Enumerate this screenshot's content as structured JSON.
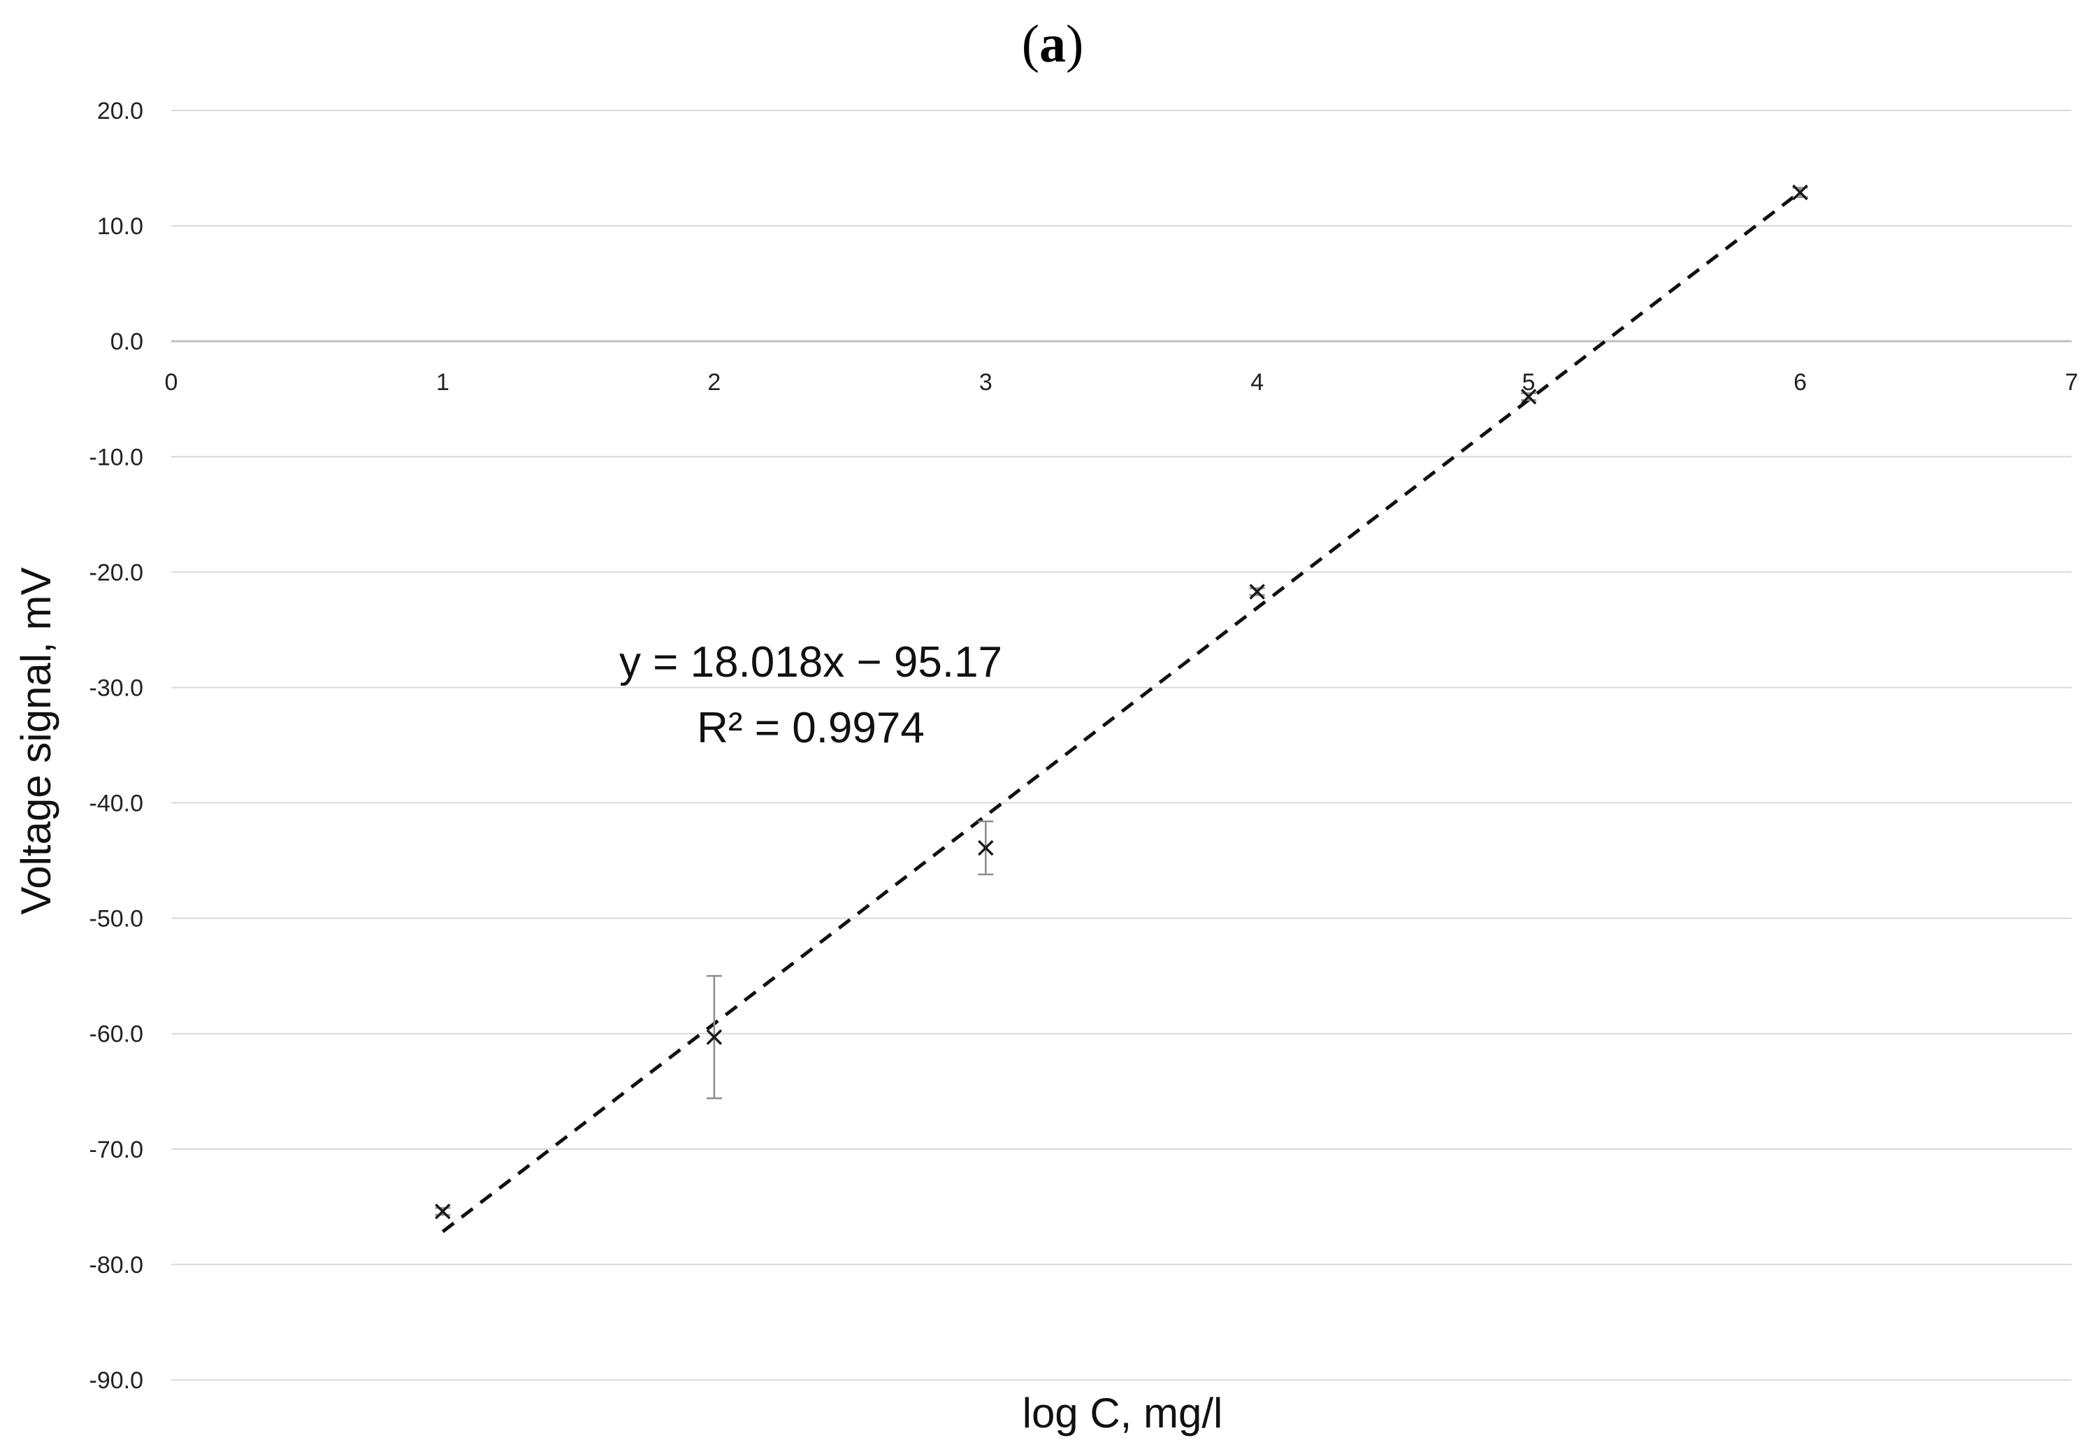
{
  "chart_data": {
    "type": "scatter",
    "panel_label": {
      "open": "(",
      "letter": "a",
      "close": ")"
    },
    "xlabel": "log C, mg/l",
    "ylabel": "Voltage signal, mV",
    "xlim": [
      0,
      7
    ],
    "ylim": [
      -90,
      20
    ],
    "x_ticks": [
      "0",
      "1",
      "2",
      "3",
      "4",
      "5",
      "6",
      "7"
    ],
    "y_ticks": [
      "20.0",
      "10.0",
      "0.0",
      "-10.0",
      "-20.0",
      "-30.0",
      "-40.0",
      "-50.0",
      "-60.0",
      "-70.0",
      "-80.0",
      "-90.0"
    ],
    "x_axis_crosses_at": 0,
    "grid": {
      "horizontal": true,
      "vertical": false
    },
    "marker": "x",
    "points": [
      {
        "x": 1,
        "y": -75.4,
        "err": 0.3
      },
      {
        "x": 2,
        "y": -60.3,
        "err": 5.3
      },
      {
        "x": 3,
        "y": -43.9,
        "err": 2.3
      },
      {
        "x": 4,
        "y": -21.7,
        "err": 0.3
      },
      {
        "x": 5,
        "y": -4.8,
        "err": 0.3
      },
      {
        "x": 6,
        "y": 12.9,
        "err": 0.4
      }
    ],
    "trendline": {
      "style": "dashed",
      "slope": 18.018,
      "intercept": -95.17,
      "x_range": [
        1,
        6
      ],
      "equation": "y = 18.018x − 95.17",
      "r2": "R² = 0.9974"
    },
    "colors": {
      "marker": "#1a1a1a",
      "trendline": "#111111",
      "errorbar": "#8c8c8c",
      "grid": "#d9d9d9",
      "axis": "#bfbfbf"
    }
  }
}
